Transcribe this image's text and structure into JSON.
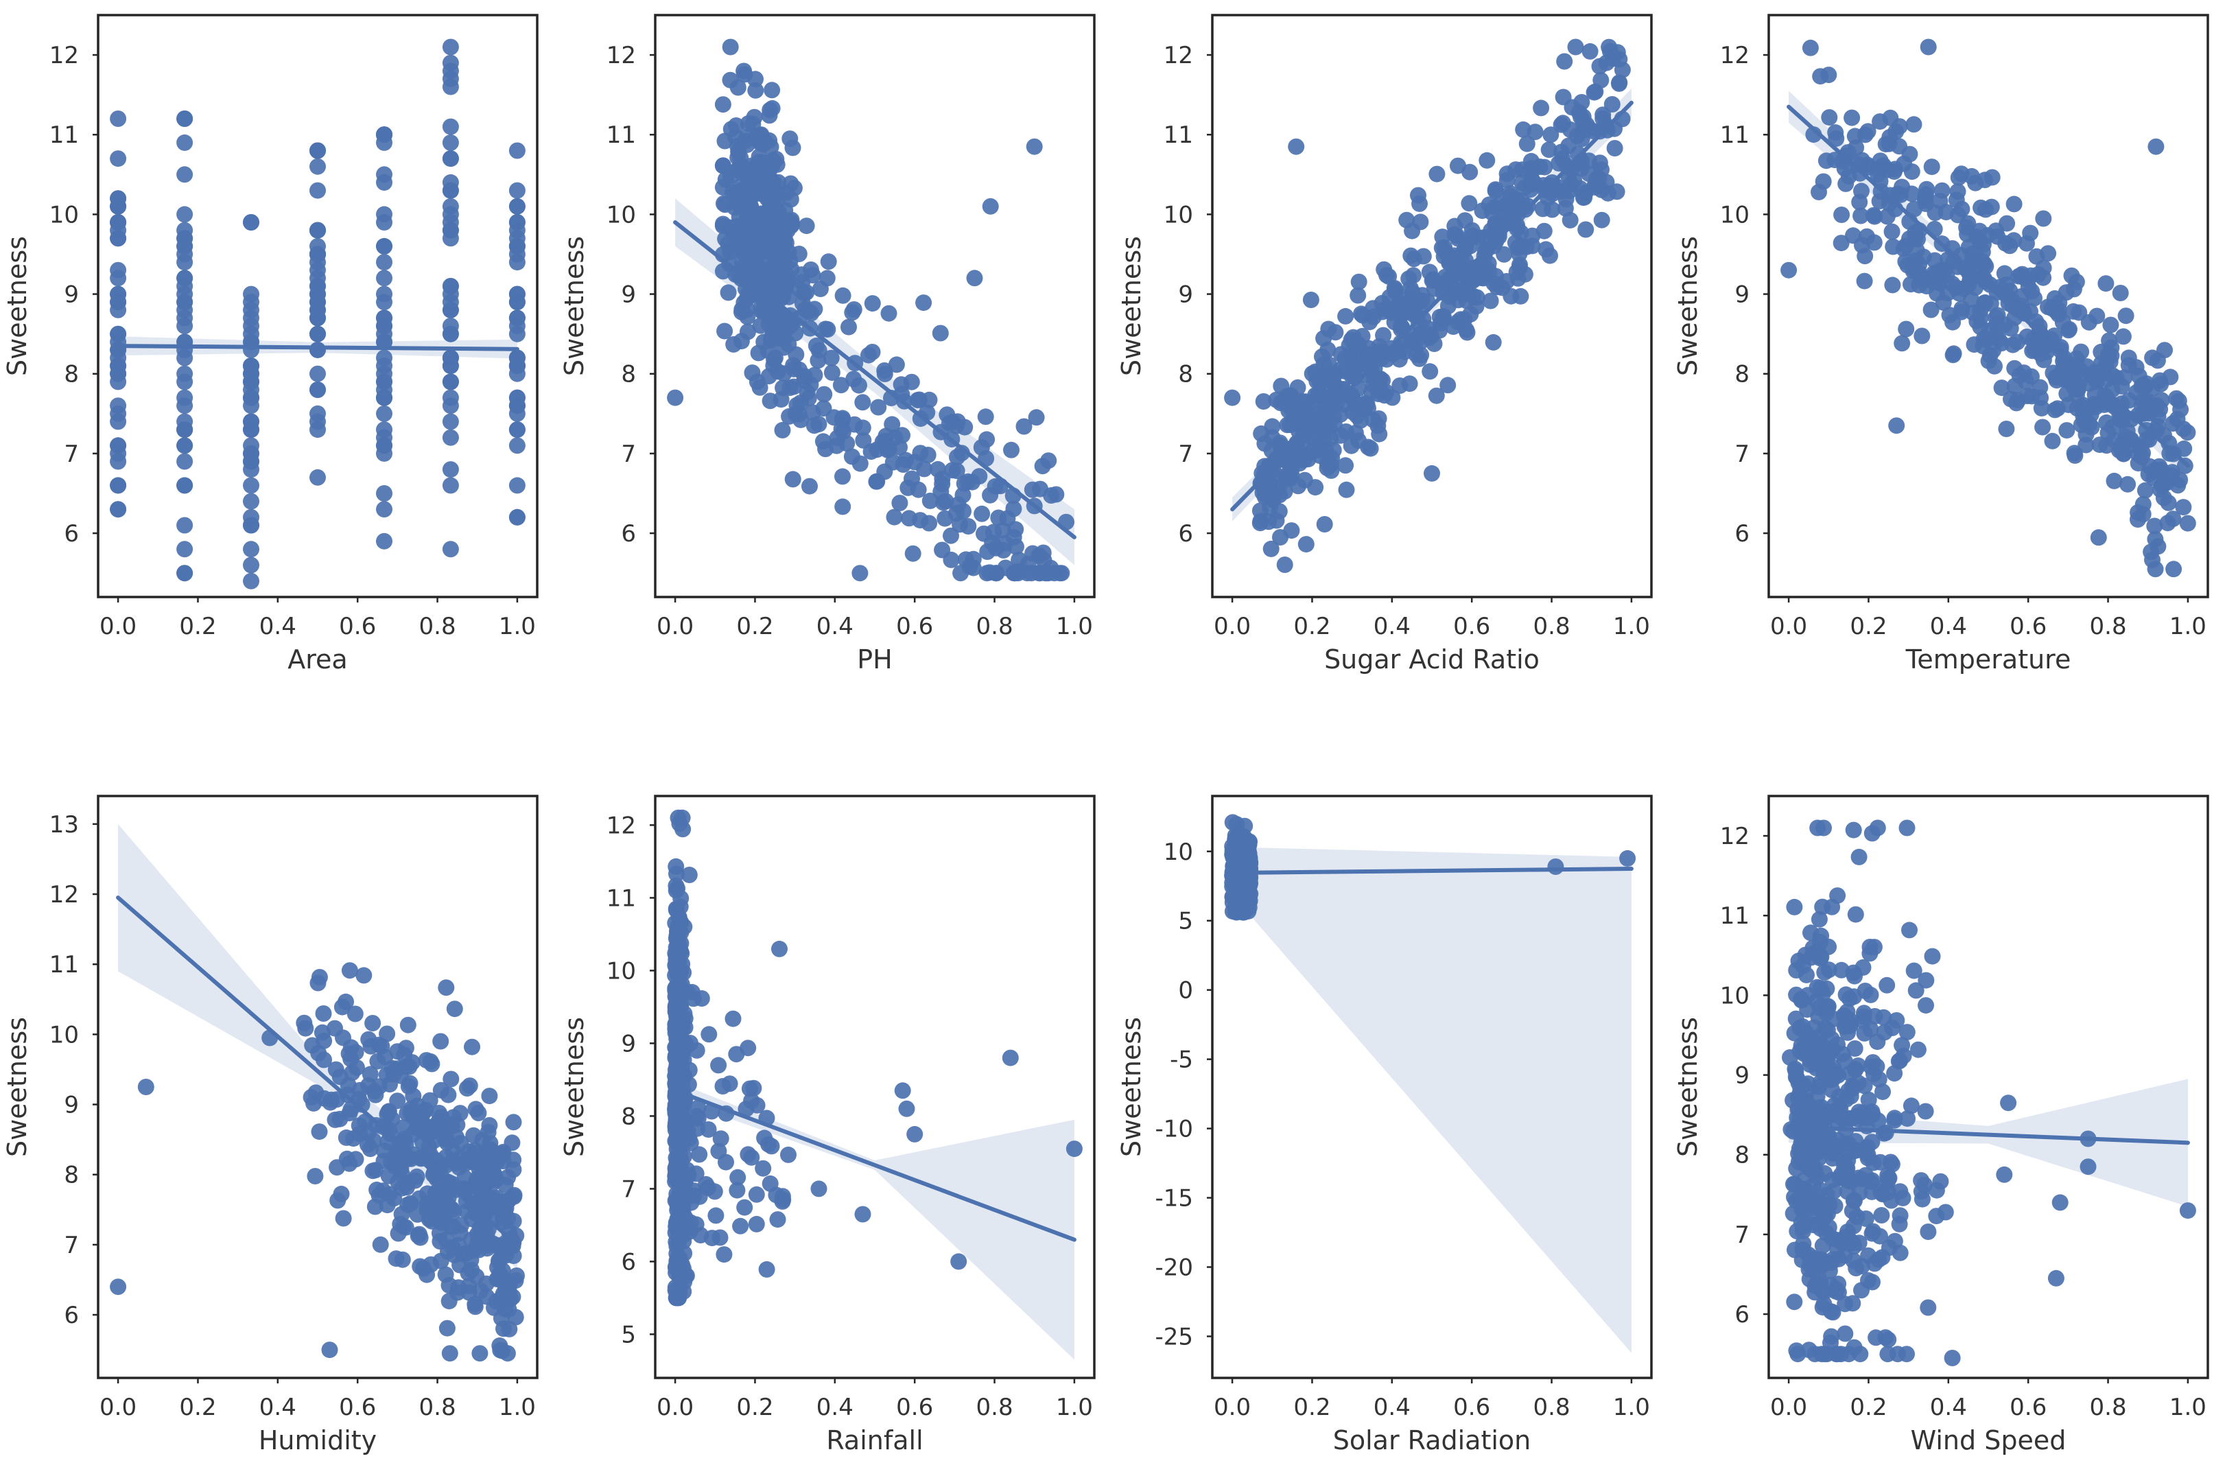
{
  "chart_data": [
    {
      "type": "scatter",
      "xlabel": "Area",
      "ylabel": "Sweetness",
      "xlim": [
        -0.05,
        1.05
      ],
      "ylim": [
        5.2,
        12.5
      ],
      "xticks": [
        "0.0",
        "0.2",
        "0.4",
        "0.6",
        "0.8",
        "1.0"
      ],
      "yticks": [
        "6",
        "7",
        "8",
        "9",
        "10",
        "11",
        "12"
      ],
      "fit": {
        "x": [
          0,
          1
        ],
        "y": [
          8.35,
          8.31
        ]
      },
      "ci_width": [
        0.12,
        0.12
      ],
      "gen": {
        "mode": "strip",
        "xs": [
          0,
          0.1667,
          0.3333,
          0.5,
          0.6667,
          0.8333,
          1.0
        ],
        "n": 40,
        "ranges": [
          [
            6.3,
            11.2
          ],
          [
            5.5,
            11.2
          ],
          [
            5.4,
            9.9
          ],
          [
            6.7,
            10.8
          ],
          [
            5.9,
            11.0
          ],
          [
            5.8,
            12.1
          ],
          [
            6.2,
            10.8
          ]
        ]
      }
    },
    {
      "type": "scatter",
      "xlabel": "PH",
      "ylabel": "Sweetness",
      "xlim": [
        -0.05,
        1.05
      ],
      "ylim": [
        5.2,
        12.5
      ],
      "xticks": [
        "0.0",
        "0.2",
        "0.4",
        "0.6",
        "0.8",
        "1.0"
      ],
      "yticks": [
        "6",
        "7",
        "8",
        "9",
        "10",
        "11",
        "12"
      ],
      "fit": {
        "x": [
          0,
          1
        ],
        "y": [
          9.9,
          5.95
        ]
      },
      "ci_width": [
        0.3,
        0.35
      ],
      "gen": {
        "mode": "cluster",
        "n": 380,
        "xcenter": 0.22,
        "xspread": 0.05,
        "ycenter": 9.7,
        "yspread": 0.8,
        "n2": 220,
        "x2range": [
          0.25,
          0.98
        ],
        "resid": 0.7
      },
      "outliers": [
        [
          0,
          7.7
        ],
        [
          0.9,
          10.85
        ],
        [
          0.79,
          10.1
        ],
        [
          0.75,
          9.2
        ]
      ]
    },
    {
      "type": "scatter",
      "xlabel": "Sugar Acid Ratio",
      "ylabel": "Sweetness",
      "xlim": [
        -0.05,
        1.05
      ],
      "ylim": [
        5.2,
        12.5
      ],
      "xticks": [
        "0.0",
        "0.2",
        "0.4",
        "0.6",
        "0.8",
        "1.0"
      ],
      "yticks": [
        "6",
        "7",
        "8",
        "9",
        "10",
        "11",
        "12"
      ],
      "fit": {
        "x": [
          0,
          1
        ],
        "y": [
          6.3,
          11.4
        ]
      },
      "ci_width": [
        0.15,
        0.18
      ],
      "gen": {
        "mode": "linear",
        "n": 560,
        "xrange": [
          0.07,
          0.98
        ],
        "skew": 1.2,
        "resid": 0.55
      },
      "outliers": [
        [
          0,
          7.7
        ],
        [
          0.16,
          10.85
        ],
        [
          0.86,
          12.1
        ],
        [
          0.5,
          6.75
        ]
      ]
    },
    {
      "type": "scatter",
      "xlabel": "Temperature",
      "ylabel": "Sweetness",
      "xlim": [
        -0.05,
        1.05
      ],
      "ylim": [
        5.2,
        12.5
      ],
      "xticks": [
        "0.0",
        "0.2",
        "0.4",
        "0.6",
        "0.8",
        "1.0"
      ],
      "yticks": [
        "6",
        "7",
        "8",
        "9",
        "10",
        "11",
        "12"
      ],
      "fit": {
        "x": [
          0,
          1
        ],
        "y": [
          11.35,
          6.85
        ]
      },
      "ci_width": [
        0.2,
        0.18
      ],
      "gen": {
        "mode": "linear",
        "n": 500,
        "xrange": [
          0.05,
          1.0
        ],
        "skew": 0.7,
        "resid": 0.6
      },
      "outliers": [
        [
          0,
          9.3
        ],
        [
          0.35,
          12.1
        ],
        [
          0.1,
          11.75
        ],
        [
          0.27,
          7.35
        ],
        [
          0.92,
          10.85
        ]
      ]
    },
    {
      "type": "scatter",
      "xlabel": "Humidity",
      "ylabel": "Sweetness",
      "xlim": [
        -0.05,
        1.05
      ],
      "ylim": [
        5.1,
        13.4
      ],
      "xticks": [
        "0.0",
        "0.2",
        "0.4",
        "0.6",
        "0.8",
        "1.0"
      ],
      "yticks": [
        "6",
        "7",
        "8",
        "9",
        "10",
        "11",
        "12",
        "13"
      ],
      "fit": {
        "x": [
          0,
          1
        ],
        "y": [
          11.95,
          7.0
        ]
      },
      "ci_width": [
        1.05,
        0.35
      ],
      "gen": {
        "mode": "linear",
        "n": 440,
        "xrange": [
          0.45,
          1.0
        ],
        "skew": 0.55,
        "resid": 0.9
      },
      "outliers": [
        [
          0,
          6.4
        ],
        [
          0.07,
          9.25
        ],
        [
          0.38,
          9.95
        ],
        [
          0.53,
          5.5
        ]
      ]
    },
    {
      "type": "scatter",
      "xlabel": "Rainfall",
      "ylabel": "Sweetness",
      "xlim": [
        -0.05,
        1.05
      ],
      "ylim": [
        4.4,
        12.4
      ],
      "xticks": [
        "0.0",
        "0.2",
        "0.4",
        "0.6",
        "0.8",
        "1.0"
      ],
      "yticks": [
        "5",
        "6",
        "7",
        "8",
        "9",
        "10",
        "11",
        "12"
      ],
      "fit": {
        "x": [
          0,
          1
        ],
        "y": [
          8.35,
          6.3
        ]
      },
      "ci_width": [
        0.12,
        1.65
      ],
      "gen": {
        "mode": "wall",
        "n": 420,
        "xspread": 0.012,
        "ycenter": 8.3,
        "yspread": 1.4,
        "n2": 80,
        "x2range": [
          0.02,
          0.3
        ],
        "resid": 1.0
      },
      "outliers": [
        [
          0.57,
          8.35
        ],
        [
          0.58,
          8.1
        ],
        [
          0.6,
          7.75
        ],
        [
          0.84,
          8.8
        ],
        [
          1.0,
          7.55
        ],
        [
          0.71,
          6.0
        ],
        [
          0.47,
          6.65
        ],
        [
          0.36,
          7.0
        ]
      ]
    },
    {
      "type": "scatter",
      "xlabel": "Solar Radiation",
      "ylabel": "Sweetness",
      "xlim": [
        -0.05,
        1.05
      ],
      "ylim": [
        -28,
        14
      ],
      "xticks": [
        "0.0",
        "0.2",
        "0.4",
        "0.6",
        "0.8",
        "1.0"
      ],
      "yticks": [
        "-25",
        "-20",
        "-15",
        "-10",
        "-5",
        "0",
        "5",
        "10"
      ],
      "fit": {
        "x": [
          0,
          1
        ],
        "y": [
          8.45,
          8.75
        ]
      },
      "ci_polygon": [
        [
          0.02,
          10.3
        ],
        [
          1.0,
          9.6
        ],
        [
          1.0,
          -26.2
        ],
        [
          0.02,
          6.2
        ]
      ],
      "gen": {
        "mode": "blob",
        "n": 300,
        "xrange": [
          0.0,
          0.045
        ],
        "ycenter": 8.4,
        "yspread": 1.3
      },
      "outliers": [
        [
          0.81,
          8.9
        ],
        [
          0.99,
          9.5
        ]
      ]
    },
    {
      "type": "scatter",
      "xlabel": "Wind Speed",
      "ylabel": "Sweetness",
      "xlim": [
        -0.05,
        1.05
      ],
      "ylim": [
        5.2,
        12.5
      ],
      "xticks": [
        "0.0",
        "0.2",
        "0.4",
        "0.6",
        "0.8",
        "1.0"
      ],
      "yticks": [
        "6",
        "7",
        "8",
        "9",
        "10",
        "11",
        "12"
      ],
      "fit": {
        "x": [
          0,
          1
        ],
        "y": [
          8.35,
          8.15
        ]
      },
      "ci_width": [
        0.2,
        0.8
      ],
      "gen": {
        "mode": "skewx",
        "n": 470,
        "xrange": [
          0.0,
          0.5
        ],
        "ycenter": 8.3,
        "yspread": 1.4
      },
      "outliers": [
        [
          1.0,
          7.3
        ],
        [
          0.75,
          8.2
        ],
        [
          0.75,
          7.85
        ],
        [
          0.68,
          7.4
        ],
        [
          0.67,
          6.45
        ],
        [
          0.54,
          7.75
        ],
        [
          0.41,
          5.45
        ],
        [
          0.55,
          8.65
        ]
      ]
    }
  ]
}
